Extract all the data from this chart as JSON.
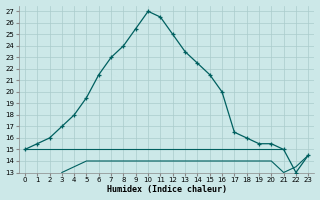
{
  "xlabel": "Humidex (Indice chaleur)",
  "background_color": "#cce8e8",
  "grid_color": "#aacccc",
  "line_color": "#006060",
  "xlim": [
    -0.5,
    23.5
  ],
  "ylim": [
    13,
    27.5
  ],
  "xticks": [
    0,
    1,
    2,
    3,
    4,
    5,
    6,
    7,
    8,
    9,
    10,
    11,
    12,
    13,
    14,
    15,
    16,
    17,
    18,
    19,
    20,
    21,
    22,
    23
  ],
  "yticks": [
    13,
    14,
    15,
    16,
    17,
    18,
    19,
    20,
    21,
    22,
    23,
    24,
    25,
    26,
    27
  ],
  "line1_x": [
    0,
    1,
    2,
    3,
    4,
    5,
    6,
    7,
    8,
    9,
    10,
    11,
    12,
    13,
    14,
    15,
    16,
    17,
    18,
    19,
    20,
    21,
    22,
    23
  ],
  "line1_y": [
    15.0,
    15.5,
    16.0,
    17.0,
    18.0,
    19.5,
    21.5,
    23.0,
    24.0,
    25.5,
    27.0,
    26.5,
    25.0,
    23.5,
    22.5,
    21.5,
    20.0,
    16.5,
    16.0,
    15.5,
    15.5,
    15.0,
    13.0,
    14.5
  ],
  "line2_x": [
    0,
    1,
    2,
    3,
    4,
    5,
    6,
    7,
    8,
    9,
    10,
    11,
    12,
    13,
    14,
    15,
    16,
    17,
    18,
    19,
    20,
    21
  ],
  "line2_y": [
    15.0,
    15.0,
    15.0,
    15.0,
    15.0,
    15.0,
    15.0,
    15.0,
    15.0,
    15.0,
    15.0,
    15.0,
    15.0,
    15.0,
    15.0,
    15.0,
    15.0,
    15.0,
    15.0,
    15.0,
    15.0,
    15.0
  ],
  "line3_x": [
    3,
    4,
    5,
    6,
    7,
    8,
    9,
    10,
    11,
    12,
    13,
    14,
    15,
    16,
    17,
    18,
    19,
    20,
    21,
    22,
    23
  ],
  "line3_y": [
    13.0,
    13.5,
    14.0,
    14.0,
    14.0,
    14.0,
    14.0,
    14.0,
    14.0,
    14.0,
    14.0,
    14.0,
    14.0,
    14.0,
    14.0,
    14.0,
    14.0,
    14.0,
    13.0,
    13.5,
    14.5
  ],
  "tick_fontsize": 5.0,
  "xlabel_fontsize": 6.0
}
